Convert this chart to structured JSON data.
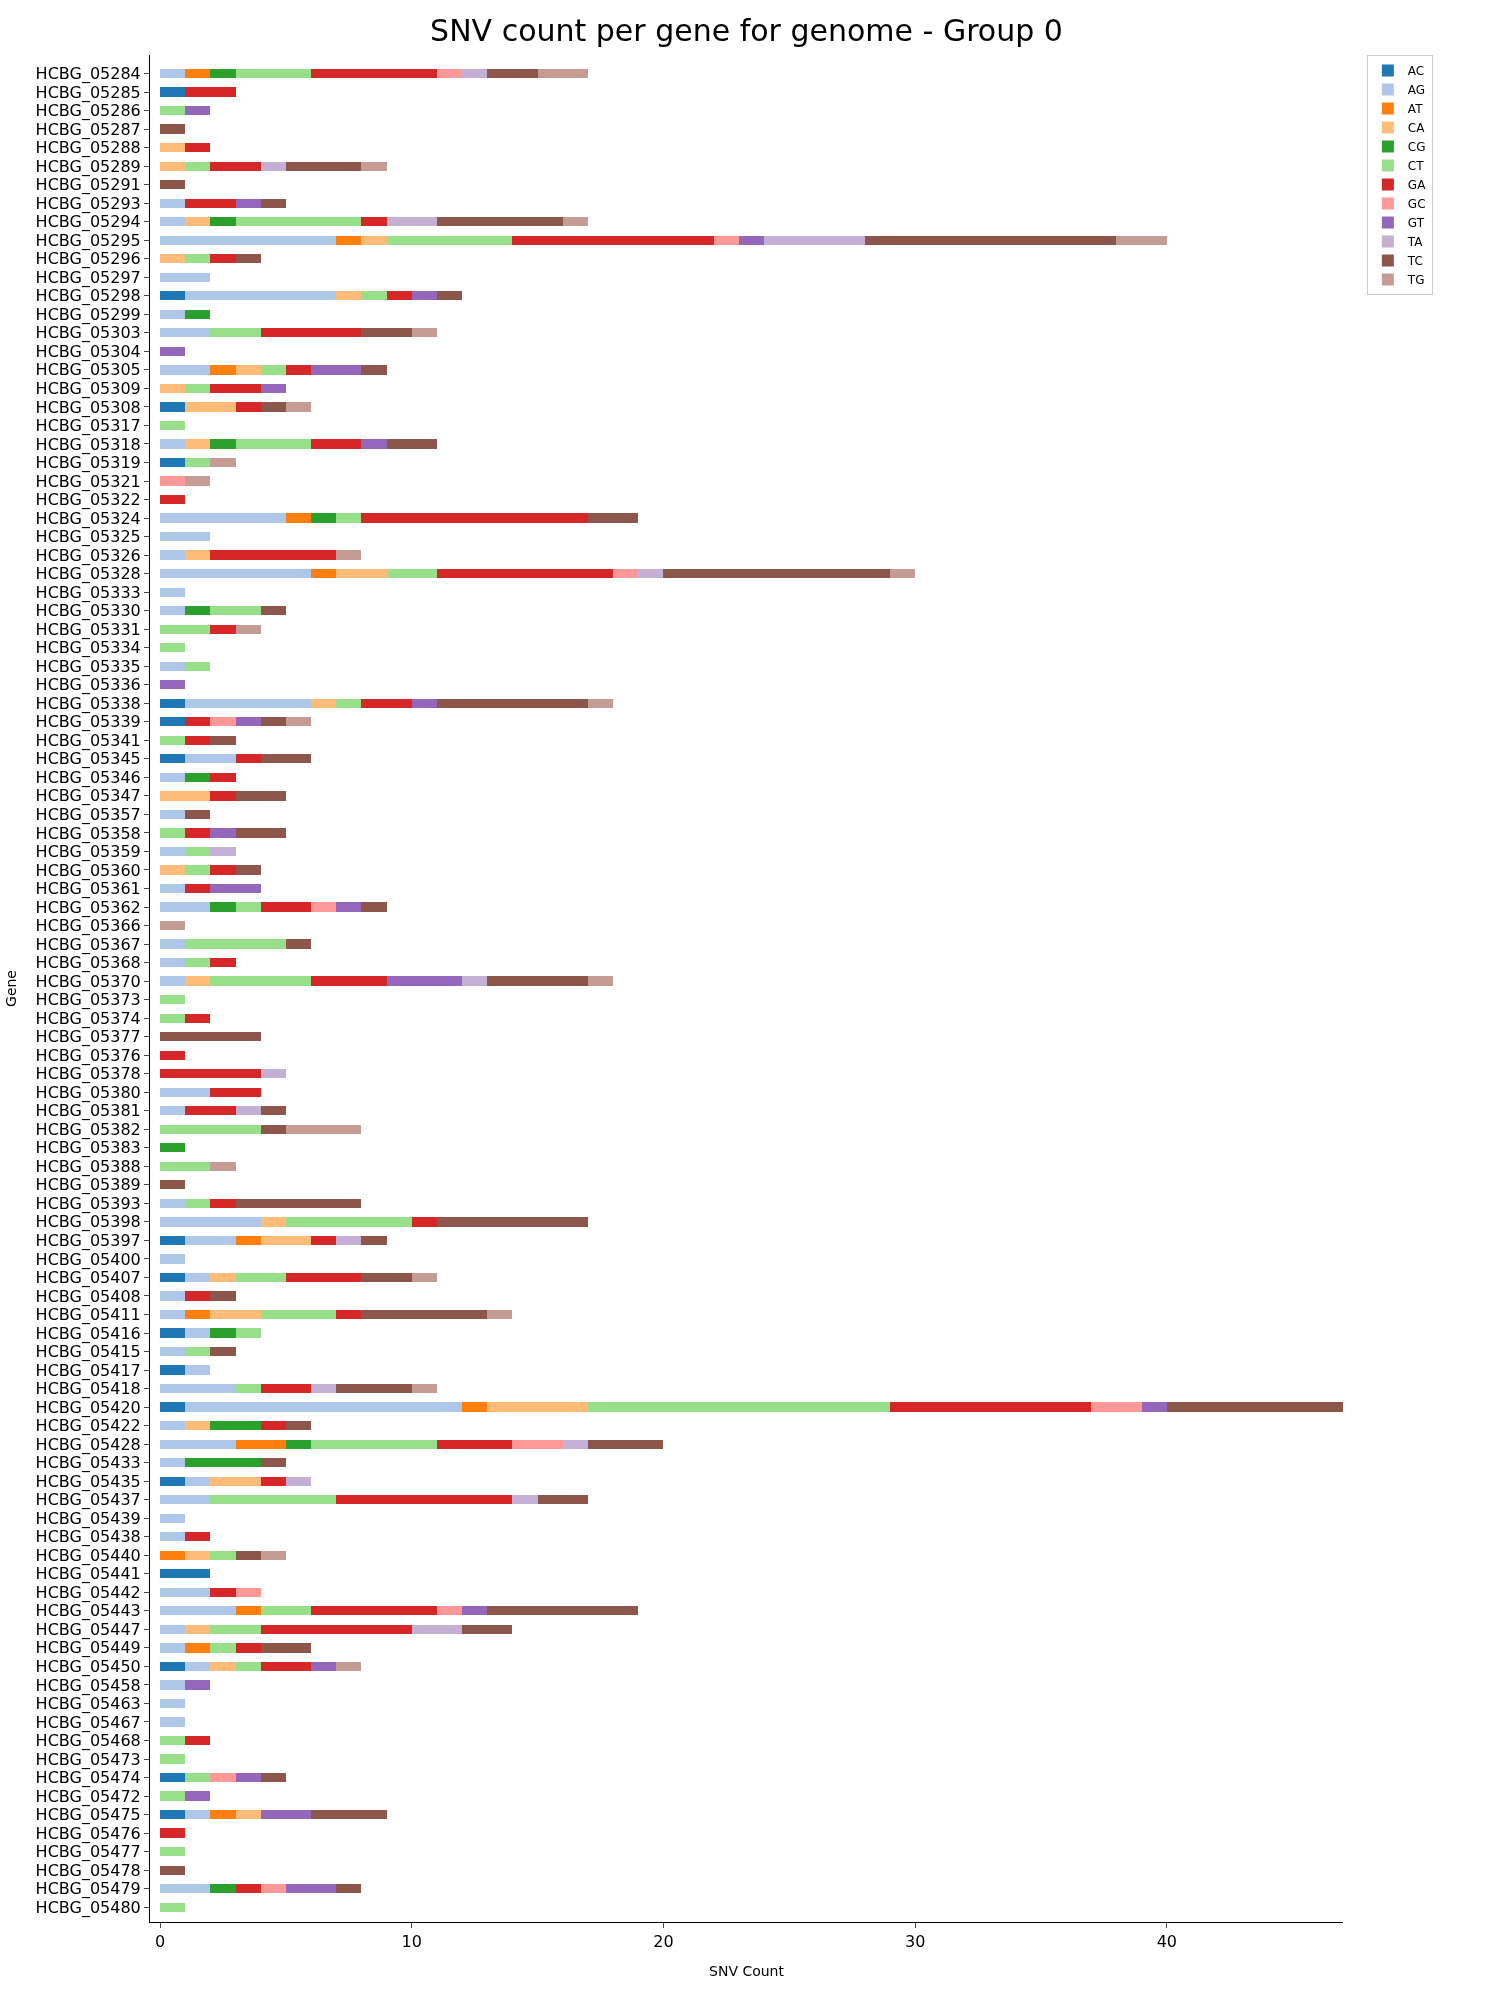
{
  "chart_data": {
    "type": "bar",
    "orientation": "horizontal",
    "stacked": true,
    "title": "SNV count per gene for genome - Group 0",
    "xlabel": "SNV Count",
    "ylabel": "Gene",
    "categories": [
      "HCBG_05284",
      "HCBG_05285",
      "HCBG_05286",
      "HCBG_05287",
      "HCBG_05288",
      "HCBG_05289",
      "HCBG_05291",
      "HCBG_05293",
      "HCBG_05294",
      "HCBG_05295",
      "HCBG_05296",
      "HCBG_05297",
      "HCBG_05298",
      "HCBG_05299",
      "HCBG_05303",
      "HCBG_05304",
      "HCBG_05305",
      "HCBG_05309",
      "HCBG_05308",
      "HCBG_05317",
      "HCBG_05318",
      "HCBG_05319",
      "HCBG_05321",
      "HCBG_05322",
      "HCBG_05324",
      "HCBG_05325",
      "HCBG_05326",
      "HCBG_05328",
      "HCBG_05333",
      "HCBG_05330",
      "HCBG_05331",
      "HCBG_05334",
      "HCBG_05335",
      "HCBG_05336",
      "HCBG_05338",
      "HCBG_05339",
      "HCBG_05341",
      "HCBG_05345",
      "HCBG_05346",
      "HCBG_05347",
      "HCBG_05357",
      "HCBG_05358",
      "HCBG_05359",
      "HCBG_05360",
      "HCBG_05361",
      "HCBG_05362",
      "HCBG_05366",
      "HCBG_05367",
      "HCBG_05368",
      "HCBG_05370",
      "HCBG_05373",
      "HCBG_05374",
      "HCBG_05377",
      "HCBG_05376",
      "HCBG_05378",
      "HCBG_05380",
      "HCBG_05381",
      "HCBG_05382",
      "HCBG_05383",
      "HCBG_05388",
      "HCBG_05389",
      "HCBG_05393",
      "HCBG_05398",
      "HCBG_05397",
      "HCBG_05400",
      "HCBG_05407",
      "HCBG_05408",
      "HCBG_05411",
      "HCBG_05416",
      "HCBG_05415",
      "HCBG_05417",
      "HCBG_05418",
      "HCBG_05420",
      "HCBG_05422",
      "HCBG_05428",
      "HCBG_05433",
      "HCBG_05435",
      "HCBG_05437",
      "HCBG_05439",
      "HCBG_05438",
      "HCBG_05440",
      "HCBG_05441",
      "HCBG_05442",
      "HCBG_05443",
      "HCBG_05447",
      "HCBG_05449",
      "HCBG_05450",
      "HCBG_05458",
      "HCBG_05463",
      "HCBG_05467",
      "HCBG_05468",
      "HCBG_05473",
      "HCBG_05474",
      "HCBG_05472",
      "HCBG_05475",
      "HCBG_05476",
      "HCBG_05477",
      "HCBG_05478",
      "HCBG_05479",
      "HCBG_05480"
    ],
    "series": [
      {
        "name": "AC",
        "color": "#1f77b4",
        "values": [
          null,
          1,
          null,
          null,
          null,
          null,
          null,
          null,
          null,
          null,
          null,
          null,
          1,
          null,
          null,
          null,
          null,
          null,
          1,
          null,
          null,
          1,
          null,
          null,
          null,
          null,
          null,
          null,
          null,
          null,
          null,
          null,
          null,
          null,
          1,
          1,
          null,
          1,
          null,
          null,
          null,
          null,
          null,
          null,
          null,
          null,
          null,
          null,
          null,
          null,
          null,
          null,
          null,
          null,
          null,
          null,
          null,
          null,
          null,
          null,
          null,
          null,
          null,
          1,
          null,
          1,
          null,
          null,
          1,
          null,
          1,
          null,
          1,
          null,
          null,
          null,
          1,
          null,
          null,
          null,
          null,
          2,
          null,
          null,
          null,
          null,
          1,
          null,
          null,
          null,
          null,
          null,
          1,
          null,
          1,
          null,
          null,
          null,
          null,
          null
        ]
      },
      {
        "name": "AG",
        "color": "#aec7e8",
        "values": [
          1,
          null,
          null,
          null,
          null,
          null,
          null,
          1,
          1,
          7,
          null,
          2,
          6,
          1,
          2,
          null,
          2,
          null,
          null,
          null,
          1,
          null,
          null,
          null,
          5,
          2,
          1,
          6,
          1,
          1,
          null,
          null,
          1,
          null,
          5,
          null,
          null,
          2,
          1,
          null,
          1,
          null,
          1,
          null,
          1,
          2,
          null,
          1,
          1,
          1,
          null,
          null,
          null,
          null,
          null,
          2,
          1,
          null,
          null,
          null,
          null,
          1,
          4,
          2,
          1,
          1,
          1,
          1,
          1,
          1,
          1,
          3,
          11,
          1,
          3,
          1,
          1,
          2,
          1,
          1,
          null,
          null,
          2,
          3,
          1,
          1,
          1,
          1,
          1,
          1,
          null,
          null,
          null,
          null,
          1,
          null,
          null,
          null,
          2,
          null
        ]
      },
      {
        "name": "AT",
        "color": "#ff7f0e",
        "values": [
          1,
          null,
          null,
          null,
          null,
          null,
          null,
          null,
          null,
          1,
          null,
          null,
          null,
          null,
          null,
          null,
          1,
          null,
          null,
          null,
          null,
          null,
          null,
          null,
          1,
          null,
          null,
          1,
          null,
          null,
          null,
          null,
          null,
          null,
          null,
          null,
          null,
          null,
          null,
          null,
          null,
          null,
          null,
          null,
          null,
          null,
          null,
          null,
          null,
          null,
          null,
          null,
          null,
          null,
          null,
          null,
          null,
          null,
          null,
          null,
          null,
          null,
          null,
          1,
          null,
          null,
          null,
          1,
          null,
          null,
          null,
          null,
          1,
          null,
          2,
          null,
          null,
          null,
          null,
          null,
          1,
          null,
          null,
          1,
          null,
          1,
          null,
          null,
          null,
          null,
          null,
          null,
          null,
          null,
          1,
          null,
          null,
          null,
          null,
          null
        ]
      },
      {
        "name": "CA",
        "color": "#ffbb78",
        "values": [
          null,
          null,
          null,
          null,
          1,
          1,
          null,
          null,
          1,
          1,
          1,
          null,
          1,
          null,
          null,
          null,
          1,
          1,
          2,
          null,
          1,
          null,
          null,
          null,
          null,
          null,
          1,
          2,
          null,
          null,
          null,
          null,
          null,
          null,
          1,
          null,
          null,
          null,
          null,
          2,
          null,
          null,
          null,
          1,
          null,
          null,
          null,
          null,
          null,
          1,
          null,
          null,
          null,
          null,
          null,
          null,
          null,
          null,
          null,
          null,
          null,
          null,
          1,
          2,
          null,
          1,
          null,
          2,
          null,
          null,
          null,
          null,
          4,
          1,
          null,
          null,
          2,
          null,
          null,
          null,
          1,
          null,
          null,
          null,
          1,
          null,
          1,
          null,
          null,
          null,
          null,
          null,
          null,
          null,
          1,
          null,
          null,
          null,
          null,
          null
        ]
      },
      {
        "name": "CG",
        "color": "#2ca02c",
        "values": [
          1,
          null,
          null,
          null,
          null,
          null,
          null,
          null,
          1,
          null,
          null,
          null,
          null,
          1,
          null,
          null,
          null,
          null,
          null,
          null,
          1,
          null,
          null,
          null,
          1,
          null,
          null,
          null,
          null,
          1,
          null,
          null,
          null,
          null,
          null,
          null,
          null,
          null,
          1,
          null,
          null,
          null,
          null,
          null,
          null,
          1,
          null,
          null,
          null,
          null,
          null,
          null,
          null,
          null,
          null,
          null,
          null,
          null,
          1,
          null,
          null,
          null,
          null,
          null,
          null,
          null,
          null,
          null,
          1,
          null,
          null,
          null,
          null,
          2,
          1,
          3,
          null,
          null,
          null,
          null,
          null,
          null,
          null,
          null,
          null,
          null,
          null,
          null,
          null,
          null,
          null,
          null,
          null,
          null,
          null,
          null,
          null,
          null,
          1,
          null
        ]
      },
      {
        "name": "CT",
        "color": "#98df8a",
        "values": [
          3,
          null,
          1,
          null,
          null,
          1,
          null,
          null,
          5,
          5,
          1,
          null,
          1,
          null,
          2,
          null,
          1,
          1,
          null,
          1,
          3,
          1,
          null,
          null,
          1,
          null,
          null,
          2,
          null,
          2,
          2,
          1,
          1,
          null,
          1,
          null,
          1,
          null,
          null,
          null,
          null,
          1,
          1,
          1,
          null,
          1,
          null,
          4,
          1,
          4,
          1,
          1,
          null,
          null,
          null,
          null,
          null,
          4,
          null,
          2,
          null,
          1,
          5,
          null,
          null,
          2,
          null,
          3,
          1,
          1,
          null,
          1,
          12,
          null,
          5,
          null,
          null,
          5,
          null,
          null,
          1,
          null,
          null,
          2,
          2,
          1,
          1,
          null,
          null,
          null,
          1,
          1,
          1,
          1,
          null,
          null,
          1,
          null,
          null,
          1
        ]
      },
      {
        "name": "GA",
        "color": "#d62728",
        "values": [
          5,
          2,
          null,
          null,
          1,
          2,
          null,
          2,
          1,
          8,
          1,
          null,
          1,
          null,
          4,
          null,
          1,
          2,
          1,
          null,
          2,
          null,
          null,
          1,
          9,
          null,
          5,
          7,
          null,
          null,
          1,
          null,
          null,
          null,
          2,
          1,
          1,
          1,
          1,
          1,
          null,
          1,
          null,
          1,
          1,
          2,
          null,
          null,
          1,
          3,
          null,
          1,
          null,
          1,
          4,
          2,
          2,
          null,
          null,
          null,
          null,
          1,
          1,
          1,
          null,
          3,
          1,
          1,
          null,
          null,
          null,
          2,
          8,
          1,
          3,
          null,
          1,
          7,
          null,
          1,
          null,
          null,
          1,
          5,
          6,
          1,
          2,
          null,
          null,
          null,
          1,
          null,
          null,
          null,
          null,
          1,
          null,
          null,
          1,
          null
        ]
      },
      {
        "name": "GC",
        "color": "#ff9896",
        "values": [
          1,
          null,
          null,
          null,
          null,
          null,
          null,
          null,
          null,
          1,
          null,
          null,
          null,
          null,
          null,
          null,
          null,
          null,
          null,
          null,
          null,
          null,
          1,
          null,
          null,
          null,
          null,
          1,
          null,
          null,
          null,
          null,
          null,
          null,
          null,
          1,
          null,
          null,
          null,
          null,
          null,
          null,
          null,
          null,
          null,
          1,
          null,
          null,
          null,
          null,
          null,
          null,
          null,
          null,
          null,
          null,
          null,
          null,
          null,
          null,
          null,
          null,
          null,
          null,
          null,
          null,
          null,
          null,
          null,
          null,
          null,
          null,
          2,
          null,
          2,
          null,
          null,
          null,
          null,
          null,
          null,
          null,
          1,
          1,
          null,
          null,
          null,
          null,
          null,
          null,
          null,
          null,
          1,
          null,
          null,
          null,
          null,
          null,
          1,
          null
        ]
      },
      {
        "name": "GT",
        "color": "#9467bd",
        "values": [
          null,
          null,
          1,
          null,
          null,
          null,
          null,
          1,
          null,
          1,
          null,
          null,
          1,
          null,
          null,
          1,
          2,
          1,
          null,
          null,
          1,
          null,
          null,
          null,
          null,
          null,
          null,
          null,
          null,
          null,
          null,
          null,
          null,
          1,
          1,
          1,
          null,
          null,
          null,
          null,
          null,
          1,
          null,
          null,
          2,
          1,
          null,
          null,
          null,
          3,
          null,
          null,
          null,
          null,
          null,
          null,
          null,
          null,
          null,
          null,
          null,
          null,
          null,
          null,
          null,
          null,
          null,
          null,
          null,
          null,
          null,
          null,
          1,
          null,
          null,
          null,
          null,
          null,
          null,
          null,
          null,
          null,
          null,
          1,
          null,
          null,
          1,
          1,
          null,
          null,
          null,
          null,
          1,
          1,
          2,
          null,
          null,
          null,
          2,
          null
        ]
      },
      {
        "name": "TA",
        "color": "#c5b0d5",
        "values": [
          1,
          null,
          null,
          null,
          null,
          1,
          null,
          null,
          2,
          4,
          null,
          null,
          null,
          null,
          null,
          null,
          null,
          null,
          null,
          null,
          null,
          null,
          null,
          null,
          null,
          null,
          null,
          1,
          null,
          null,
          null,
          null,
          null,
          null,
          null,
          null,
          null,
          null,
          null,
          null,
          null,
          null,
          1,
          null,
          null,
          null,
          null,
          null,
          null,
          1,
          null,
          null,
          null,
          null,
          1,
          null,
          1,
          null,
          null,
          null,
          null,
          null,
          null,
          1,
          null,
          null,
          null,
          null,
          null,
          null,
          null,
          1,
          null,
          null,
          1,
          null,
          1,
          1,
          null,
          null,
          null,
          null,
          null,
          null,
          2,
          null,
          null,
          null,
          null,
          null,
          null,
          null,
          null,
          null,
          null,
          null,
          null,
          null,
          null,
          null
        ]
      },
      {
        "name": "TC",
        "color": "#8c564b",
        "values": [
          2,
          null,
          null,
          1,
          null,
          3,
          1,
          1,
          5,
          10,
          1,
          null,
          1,
          null,
          2,
          null,
          1,
          null,
          1,
          null,
          2,
          null,
          null,
          null,
          2,
          null,
          null,
          9,
          null,
          1,
          null,
          null,
          null,
          null,
          6,
          1,
          1,
          2,
          null,
          2,
          1,
          2,
          null,
          1,
          null,
          1,
          null,
          1,
          null,
          4,
          null,
          null,
          4,
          null,
          null,
          null,
          1,
          1,
          null,
          null,
          1,
          5,
          6,
          1,
          null,
          2,
          1,
          5,
          null,
          1,
          null,
          3,
          7,
          1,
          3,
          1,
          null,
          2,
          null,
          null,
          1,
          null,
          null,
          6,
          2,
          2,
          null,
          null,
          null,
          null,
          null,
          null,
          1,
          null,
          3,
          null,
          null,
          1,
          1,
          null
        ]
      },
      {
        "name": "TG",
        "color": "#c49c94",
        "values": [
          2,
          null,
          null,
          null,
          null,
          1,
          null,
          null,
          1,
          2,
          null,
          null,
          null,
          null,
          1,
          null,
          null,
          null,
          1,
          null,
          null,
          1,
          1,
          null,
          null,
          null,
          1,
          1,
          null,
          null,
          1,
          null,
          null,
          null,
          1,
          1,
          null,
          null,
          null,
          null,
          null,
          null,
          null,
          null,
          null,
          null,
          1,
          null,
          null,
          1,
          null,
          null,
          null,
          null,
          null,
          null,
          null,
          3,
          null,
          1,
          null,
          null,
          null,
          null,
          null,
          1,
          null,
          1,
          null,
          null,
          null,
          1,
          null,
          null,
          null,
          null,
          null,
          null,
          null,
          null,
          1,
          null,
          null,
          null,
          null,
          null,
          1,
          null,
          null,
          null,
          null,
          null,
          null,
          null,
          null,
          null,
          null,
          null,
          null,
          null
        ]
      }
    ],
    "xlim": [
      -0.4,
      47
    ],
    "xticks": [
      0,
      10,
      20,
      30,
      40
    ],
    "legend": "top right"
  }
}
